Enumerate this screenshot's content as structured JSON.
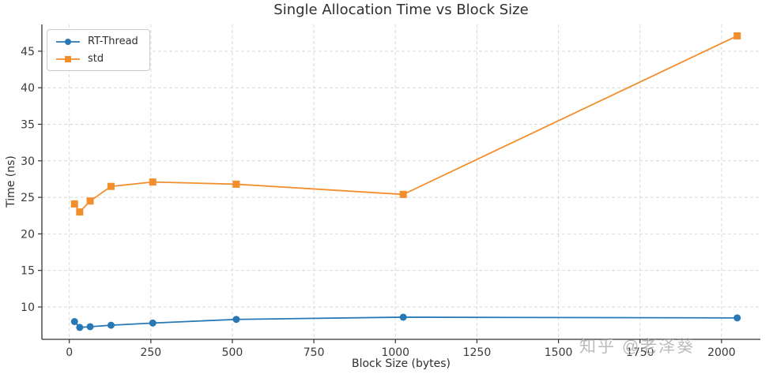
{
  "watermark": {
    "text": "知乎 @老泽葵"
  },
  "chart_data": {
    "type": "line",
    "title": "Single Allocation Time vs Block Size",
    "xlabel": "Block Size (bytes)",
    "ylabel": "Time (ns)",
    "x": [
      16,
      32,
      64,
      128,
      256,
      512,
      1024,
      2048
    ],
    "series": [
      {
        "name": "RT-Thread",
        "color": "#2878B5",
        "marker": "circle",
        "values": [
          8.0,
          7.2,
          7.3,
          7.5,
          7.8,
          8.3,
          8.6,
          8.5
        ]
      },
      {
        "name": "std",
        "color": "#F28E2C",
        "marker": "square",
        "values": [
          24.1,
          23.0,
          24.5,
          26.5,
          27.1,
          26.8,
          25.4,
          47.1
        ]
      }
    ],
    "xticks": [
      0,
      250,
      500,
      750,
      1000,
      1250,
      1500,
      1750,
      2000
    ],
    "yticks": [
      10,
      15,
      20,
      25,
      30,
      35,
      40,
      45
    ],
    "xlim": [
      -84,
      2119
    ],
    "ylim": [
      5.57,
      48.66
    ],
    "grid": true,
    "grid_style": "dashed",
    "legend_position": "upper left",
    "colors": {
      "grid": "#d9d9d9",
      "spine": "#333333",
      "text": "#2f2f2f",
      "background": "#ffffff"
    }
  }
}
